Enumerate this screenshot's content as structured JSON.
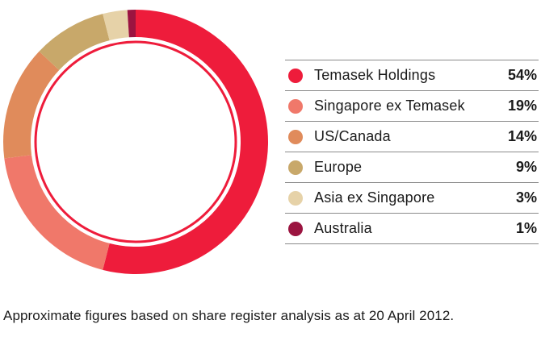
{
  "chart_data": {
    "type": "pie",
    "variant": "donut",
    "title": "",
    "legend_position": "right",
    "categories": [
      "Temasek Holdings",
      "Singapore ex Temasek",
      "US/Canada",
      "Europe",
      "Asia ex Singapore",
      "Australia"
    ],
    "values": [
      54,
      19,
      14,
      9,
      3,
      1
    ],
    "value_labels": [
      "54%",
      "19%",
      "14%",
      "9%",
      "3%",
      "1%"
    ],
    "unit": "%",
    "colors": [
      "#ee1c3b",
      "#f0786a",
      "#e08b5b",
      "#c8a86a",
      "#e6d2a8",
      "#9b1440"
    ]
  },
  "caption": "Approximate figures based on share register analysis as at 20 April 2012."
}
